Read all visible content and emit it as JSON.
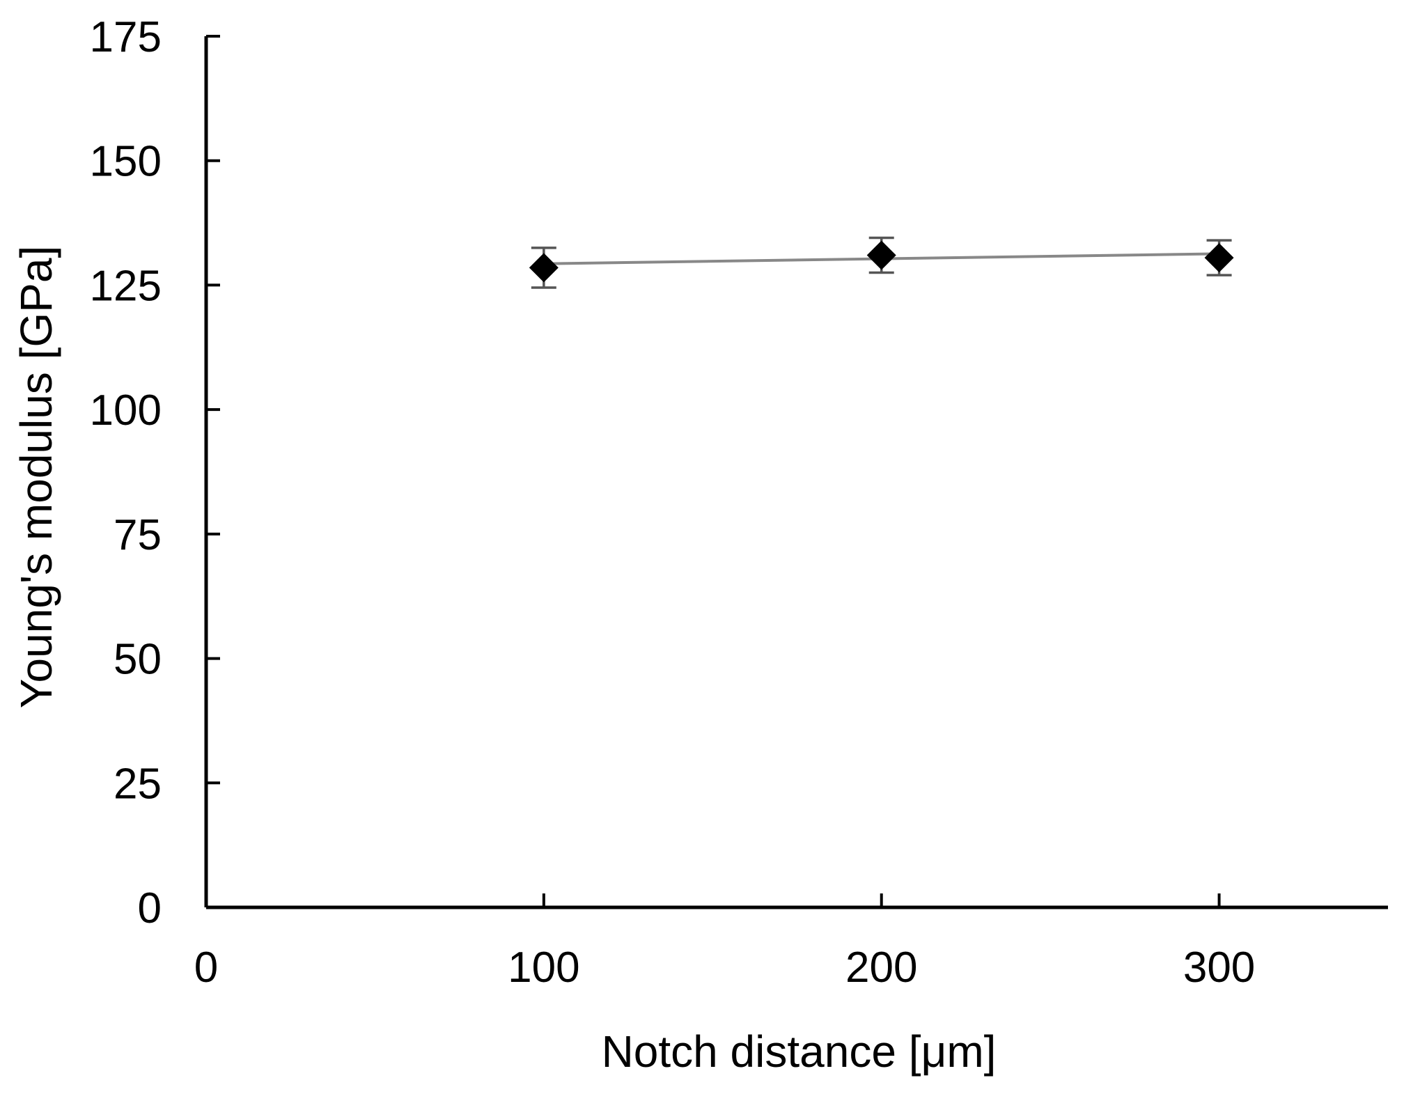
{
  "chart_data": {
    "type": "scatter",
    "title": "",
    "xlabel": "Notch distance [μm]",
    "ylabel": "Young's modulus [GPa]",
    "xlim": [
      0,
      350
    ],
    "ylim": [
      0,
      175
    ],
    "xticks": [
      0,
      100,
      200,
      300
    ],
    "yticks": [
      0,
      25,
      50,
      75,
      100,
      125,
      150,
      175
    ],
    "grid": false,
    "legend": "none",
    "series": [
      {
        "marker": "diamond",
        "color": "#000000",
        "x": [
          100,
          200,
          300
        ],
        "y": [
          128.5,
          131.0,
          130.5
        ],
        "error": [
          4.0,
          3.5,
          3.5
        ]
      }
    ],
    "trendline": {
      "type": "linear",
      "color": "#888888",
      "x": [
        100,
        300
      ],
      "y": [
        129.3,
        131.3
      ]
    }
  }
}
